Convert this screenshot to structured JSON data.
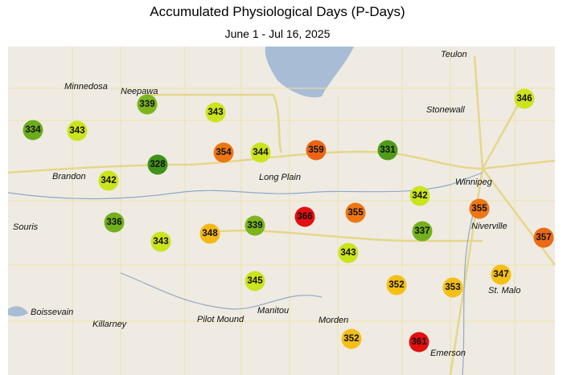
{
  "title": "Accumulated Physiological Days (P-Days)",
  "subtitle": "June 1 - Jul 16, 2025",
  "stations": [
    {
      "value": 334,
      "color": "#6aac1c"
    },
    {
      "value": 343,
      "color": "#cbe41c"
    },
    {
      "value": 339,
      "color": "#7cb61c"
    },
    {
      "value": 343,
      "color": "#cbe41c"
    },
    {
      "value": 354,
      "color": "#ef7614"
    },
    {
      "value": 344,
      "color": "#cbe41c"
    },
    {
      "value": 359,
      "color": "#ec6414"
    },
    {
      "value": 331,
      "color": "#4e9c1a"
    },
    {
      "value": 346,
      "color": "#cbe41c"
    },
    {
      "value": 328,
      "color": "#3f921a"
    },
    {
      "value": 342,
      "color": "#cbe41c"
    },
    {
      "value": 342,
      "color": "#cbe41c"
    },
    {
      "value": 366,
      "color": "#e31010"
    },
    {
      "value": 355,
      "color": "#ef7614"
    },
    {
      "value": 355,
      "color": "#ef7614"
    },
    {
      "value": 336,
      "color": "#72b01c"
    },
    {
      "value": 343,
      "color": "#cbe41c"
    },
    {
      "value": 348,
      "color": "#f5b816"
    },
    {
      "value": 339,
      "color": "#7cb61c"
    },
    {
      "value": 337,
      "color": "#72b01c"
    },
    {
      "value": 357,
      "color": "#ec6a14"
    },
    {
      "value": 343,
      "color": "#cbe41c"
    },
    {
      "value": 345,
      "color": "#cbe41c"
    },
    {
      "value": 352,
      "color": "#f5c014"
    },
    {
      "value": 353,
      "color": "#f5c014"
    },
    {
      "value": 347,
      "color": "#f5c014"
    },
    {
      "value": 352,
      "color": "#f5c014"
    },
    {
      "value": 361,
      "color": "#e31010"
    }
  ],
  "places": [
    "Teulon",
    "Minnedosa",
    "Neepawa",
    "Stonewall",
    "Winnipeg",
    "Brandon",
    "Long Plain",
    "Souris",
    "Niverville",
    "St. Malo",
    "Boissevain",
    "Killarney",
    "Pilot Mound",
    "Manitou",
    "Morden",
    "Emerson"
  ]
}
